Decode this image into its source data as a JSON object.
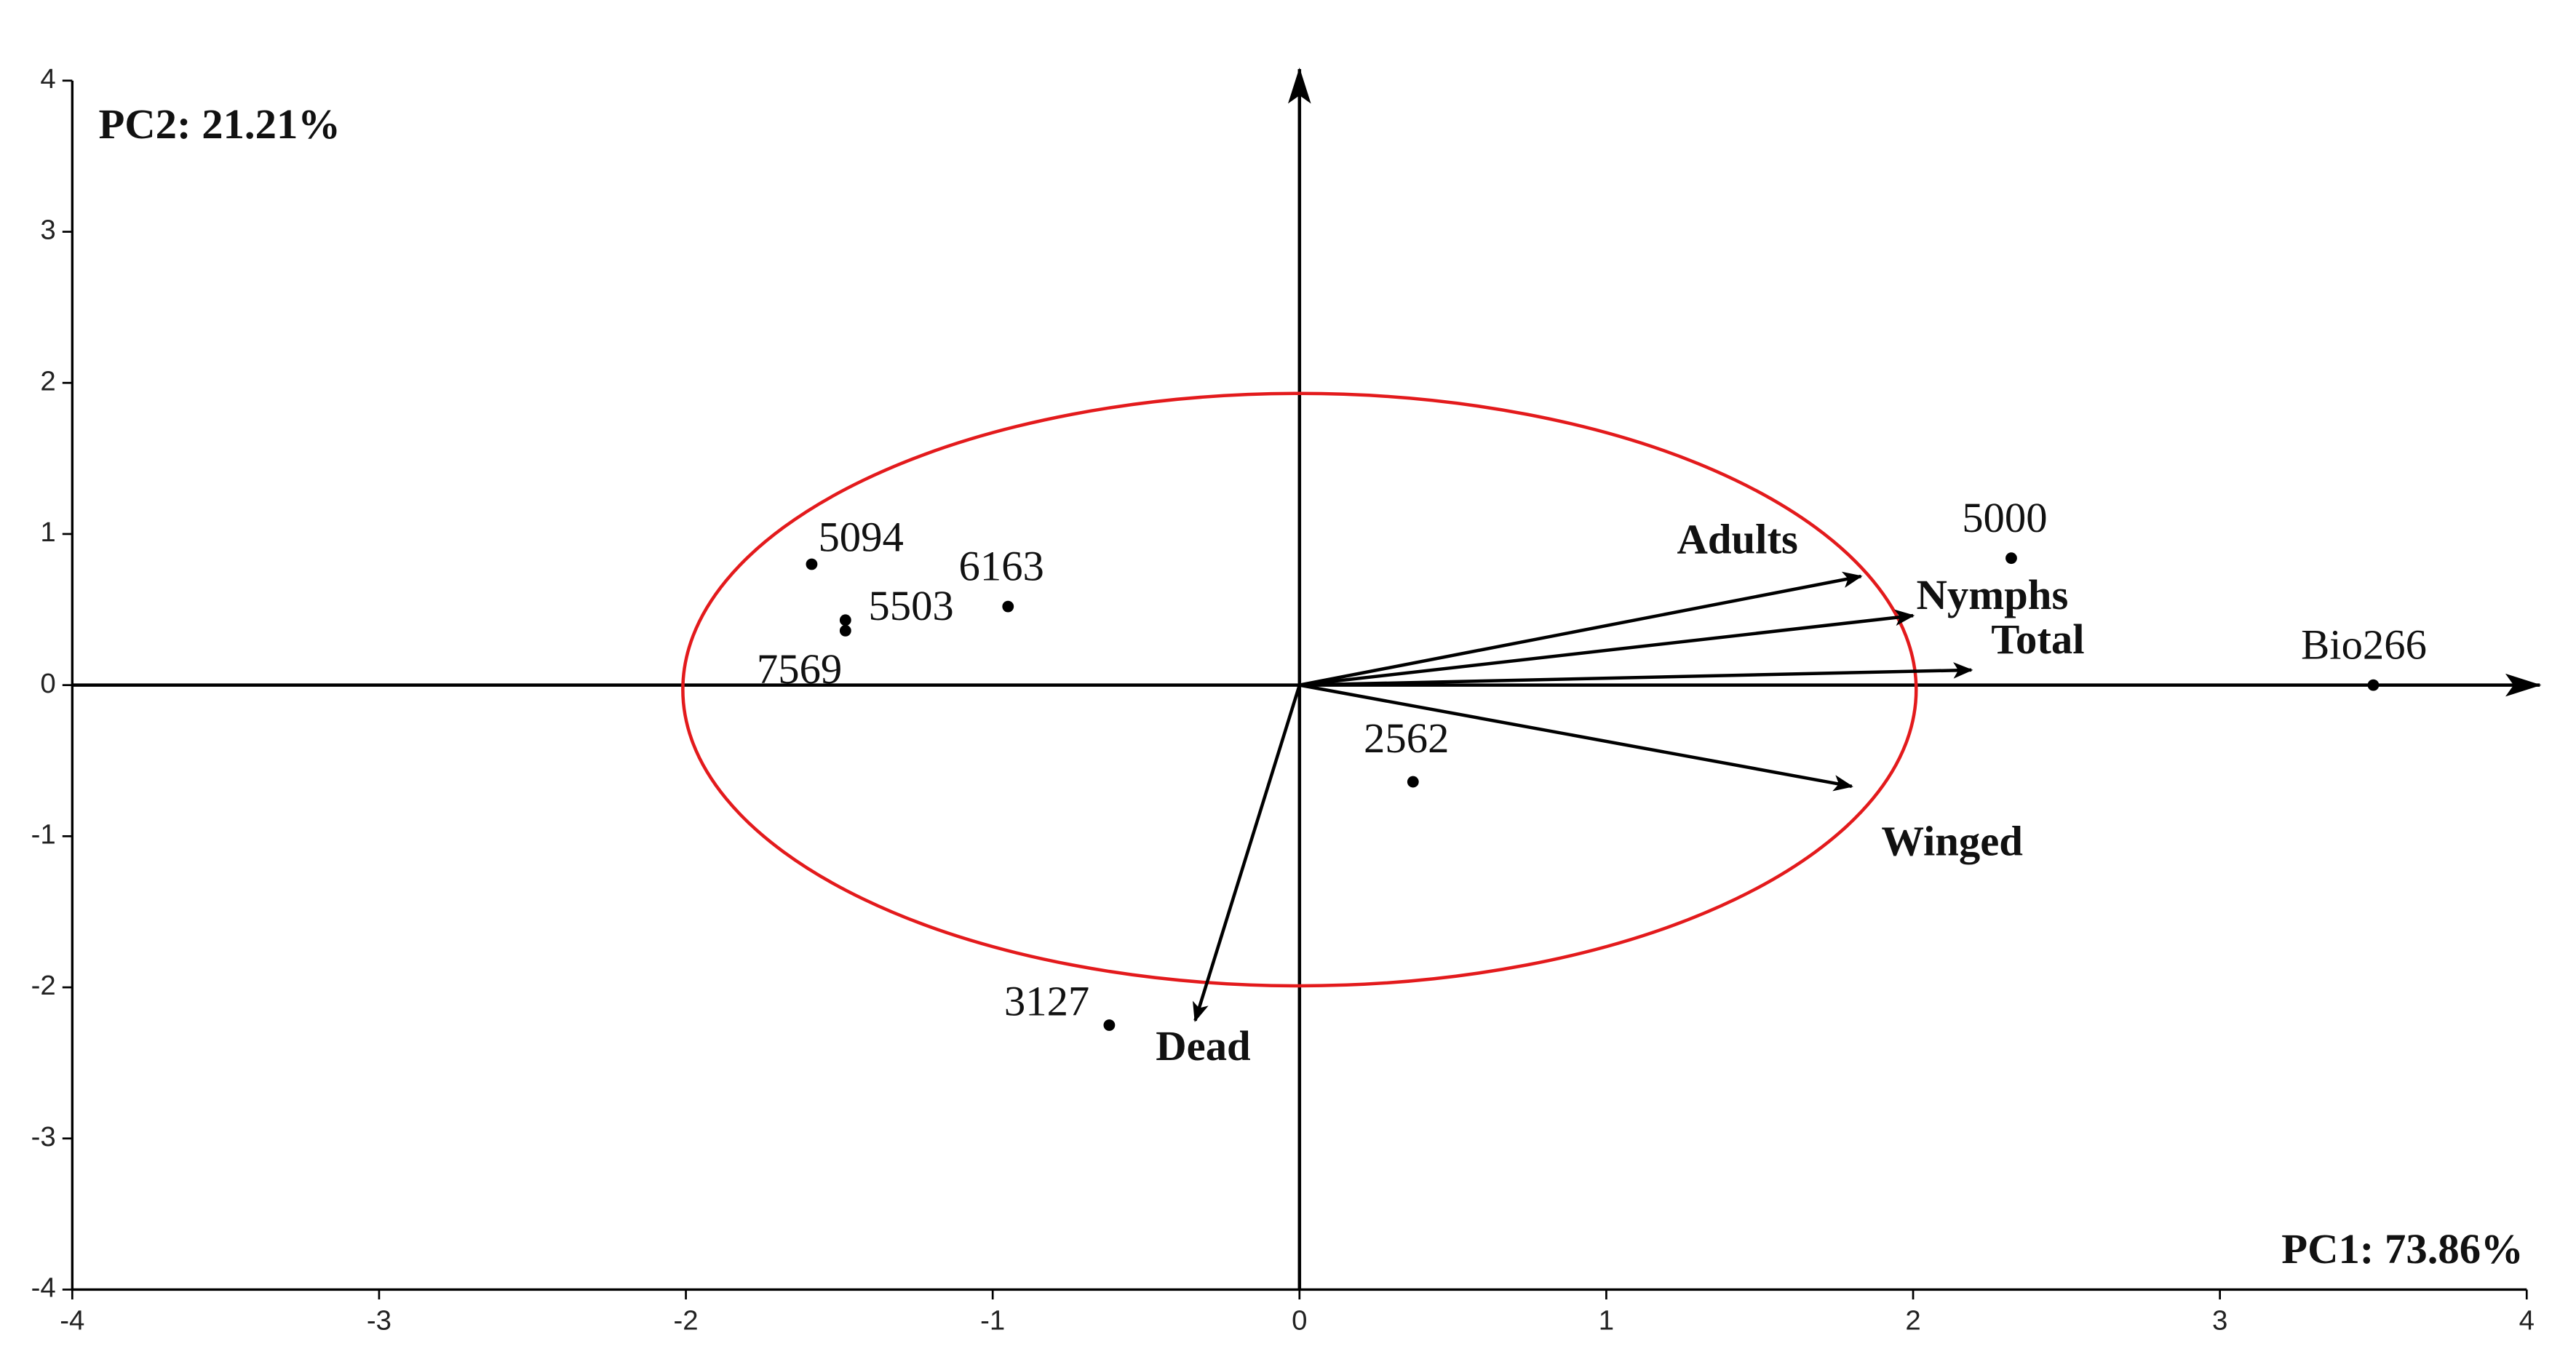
{
  "chart_data": {
    "type": "scatter",
    "xlabel": "PC1: 73.86%",
    "ylabel": "PC2: 21.21%",
    "xlim": [
      -4,
      4
    ],
    "ylim": [
      -4,
      4
    ],
    "xticks": [
      -4,
      -3,
      -2,
      -1,
      0,
      1,
      2,
      3,
      4
    ],
    "yticks": [
      -4,
      -3,
      -2,
      -1,
      0,
      1,
      2,
      3,
      4
    ],
    "points": {
      "labels": [
        "5094",
        "5503",
        "7569",
        "6163",
        "5000",
        "Bio266",
        "2562",
        "3127"
      ],
      "x": [
        -1.59,
        -1.48,
        -1.48,
        -0.95,
        2.32,
        3.5,
        0.37,
        -0.62
      ],
      "y": [
        0.8,
        0.43,
        0.36,
        0.52,
        0.84,
        0,
        -0.64,
        -2.25
      ],
      "color": "#000000"
    },
    "vectors": {
      "labels": [
        "Adults",
        "Nymphs",
        "Total",
        "Winged",
        "Dead"
      ],
      "x": [
        1.83,
        2.0,
        2.19,
        1.8,
        -0.34
      ],
      "y": [
        0.72,
        0.46,
        0.1,
        -0.67,
        -2.22
      ],
      "color": "#000000"
    },
    "ellipse": {
      "center": [
        0,
        -0.03
      ],
      "rx": 2.01,
      "ry": 1.96,
      "color": "#e31a1c"
    }
  }
}
